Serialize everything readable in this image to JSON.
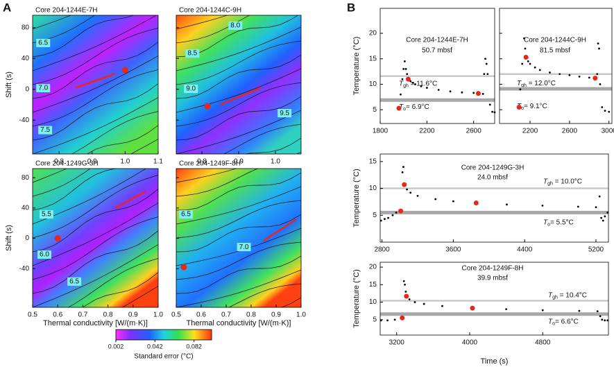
{
  "panel_labels": [
    "A",
    "B"
  ],
  "chart_data": [
    {
      "type": "heatmap",
      "title": "Core 204-1244E-7H",
      "ylabel": "Shift (s)",
      "xlim": [
        0.72,
        1.1
      ],
      "ylim": [
        -84,
        96
      ],
      "xticks": [
        0.8,
        0.9,
        {
          "value": 1,
          "label": "1.0"
        },
        1.1
      ],
      "yticks": [
        80,
        40,
        0,
        -40
      ],
      "contours": [
        {
          "level": 6.5,
          "x": 0.752,
          "y": 60
        },
        {
          "level": {
            "value": 7,
            "label": "7.0"
          },
          "x": 0.752,
          "y": 1.5
        },
        {
          "level": 7.5,
          "x": 0.758,
          "y": -53
        }
      ],
      "best_fit": {
        "x": 1.0,
        "y": 25
      },
      "fit_line": {
        "x": [
          0.85,
          0.97
        ],
        "y": [
          2,
          20
        ]
      },
      "color": "#e8261c"
    },
    {
      "type": "heatmap",
      "title": "Core 204-1244C-9H",
      "xlim": [
        0.73,
        1.07
      ],
      "ylim": [
        -84,
        96
      ],
      "xticks": [
        0.8,
        0.9,
        {
          "value": 1,
          "label": "1.0"
        }
      ],
      "yticks": [
        80,
        40,
        0,
        -40
      ],
      "ytick_labels": false,
      "contours": [
        {
          "level": {
            "value": 8,
            "label": "8.0"
          },
          "x": 0.891,
          "y": 82.5
        },
        {
          "level": 8.5,
          "x": 0.774,
          "y": 46.5
        },
        {
          "level": {
            "value": 9,
            "label": "9.0"
          },
          "x": 0.77,
          "y": 0.6
        },
        {
          "level": 9.5,
          "x": 1.025,
          "y": -31
        }
      ],
      "best_fit": {
        "x": 0.815,
        "y": -22
      },
      "fit_line": {
        "x": [
          0.85,
          0.96
        ],
        "y": [
          -20,
          2
        ]
      },
      "color": "#e8261c"
    },
    {
      "type": "heatmap",
      "title": "Core 204-1249G-3H",
      "ylabel": "Shift (s)",
      "xlabel": "Thermal conductivity [W/(m·K)]",
      "xlim": [
        0.5,
        1.0
      ],
      "ylim": [
        -91,
        92
      ],
      "xticks": [
        0.5,
        0.6,
        0.7,
        0.8,
        0.9,
        {
          "value": 1,
          "label": "1.0"
        }
      ],
      "yticks": [
        80,
        40,
        0,
        -40
      ],
      "contours": [
        {
          "level": 5.5,
          "x": 0.555,
          "y": 31.6
        },
        {
          "level": {
            "value": 6,
            "label": "6.0"
          },
          "x": 0.547,
          "y": -21.5
        },
        {
          "level": 6.5,
          "x": 0.666,
          "y": -57
        }
      ],
      "best_fit": {
        "x": 0.6,
        "y": 0
      },
      "fit_line": {
        "x": [
          0.83,
          0.95
        ],
        "y": [
          40,
          62
        ]
      },
      "color": "#e8261c"
    },
    {
      "type": "heatmap",
      "title": "Core 204-1249F-8H",
      "xlabel": "Thermal conductivity [W/(m·K)]",
      "xlim": [
        0.5,
        1.0
      ],
      "ylim": [
        -91,
        92
      ],
      "xticks": [
        0.5,
        0.6,
        0.7,
        0.8,
        0.9,
        {
          "value": 1,
          "label": "1.0"
        }
      ],
      "yticks": [
        80,
        40,
        0,
        -40
      ],
      "ytick_labels": false,
      "contours": [
        {
          "level": 6.5,
          "x": 0.539,
          "y": 31.6
        },
        {
          "level": {
            "value": 7,
            "label": "7.0"
          },
          "x": 0.771,
          "y": -11.5
        }
      ],
      "best_fit": {
        "x": 0.53,
        "y": -38
      },
      "fit_line": {
        "x": [
          0.85,
          0.98
        ],
        "y": [
          -3,
          25
        ]
      },
      "color": "#e8261c"
    },
    {
      "type": "scatter",
      "ylabel": "Temperature (°C)",
      "annotations": [
        "Core 204-1244E-7H",
        "50.7 mbsf"
      ],
      "xlim": [
        1800,
        2780
      ],
      "ylim": [
        2.3,
        24.9
      ],
      "xticks": [
        1800,
        2200,
        2600
      ],
      "yticks": [
        5,
        10,
        15,
        20
      ],
      "x": [
        1960,
        1975,
        1990,
        2000,
        2010,
        2020,
        2030,
        2040,
        2060,
        2080,
        2100,
        2150,
        2200,
        2300,
        2400,
        2500,
        2600,
        2650,
        2680,
        2690,
        2700,
        2710,
        2720,
        2740,
        2760,
        2780
      ],
      "values": [
        5.3,
        8,
        11,
        13,
        14.5,
        13,
        12,
        11,
        10.6,
        10.3,
        10,
        9.6,
        9.3,
        8.9,
        8.6,
        8.4,
        8.3,
        8.2,
        8.1,
        12,
        15,
        14,
        12,
        6,
        4.6,
        4.5
      ],
      "color": "#000000",
      "picks": {
        "x": [
          1960,
          2040,
          2640
        ],
        "values": [
          5.3,
          11,
          8.2
        ],
        "color": "#e8261c"
      },
      "hlines": [
        {
          "symbol": "T",
          "sub": "gh",
          "text": " = 11.6°C",
          "value": 11.6,
          "color": "#c8c8c8"
        },
        {
          "symbol": "T",
          "sub": "o",
          "text": "= 6.9°C",
          "value": 6.9,
          "color": "#a8a8a8"
        }
      ]
    },
    {
      "type": "scatter",
      "annotations": [
        "Core 204-1244C-9H",
        "81.5 mbsf"
      ],
      "xlim": [
        1890,
        3030
      ],
      "ylim": [
        2.3,
        24.9
      ],
      "xticks": [
        2200,
        2600,
        3000
      ],
      "yticks": [
        5,
        10,
        15,
        20
      ],
      "ytick_labels": false,
      "x": [
        2088,
        2100,
        2120,
        2140,
        2150,
        2158,
        2180,
        2200,
        2250,
        2300,
        2400,
        2500,
        2600,
        2700,
        2800,
        2860,
        2880,
        2890,
        2900,
        2910,
        2930,
        2960,
        3000
      ],
      "values": [
        5.5,
        9,
        14,
        19,
        17,
        15.3,
        14.5,
        14,
        13.3,
        12.8,
        12.3,
        12,
        11.8,
        11.5,
        11.3,
        11.2,
        12,
        18,
        17,
        10,
        5.5,
        4.8,
        4.6
      ],
      "color": "#000000",
      "picks": {
        "x": [
          2088,
          2158,
          2860
        ],
        "values": [
          5.5,
          15.3,
          11.2
        ],
        "color": "#e8261c"
      },
      "hlines": [
        {
          "symbol": "T",
          "sub": "gh",
          "text": " = 12.0°C",
          "value": 12.0,
          "color": "#c8c8c8"
        },
        {
          "symbol": "T",
          "sub": "o",
          "text": "= 9.1°C",
          "value": 9.1,
          "color": "#a8a8a8"
        }
      ]
    },
    {
      "type": "scatter",
      "ylabel": "Temperature (°C)",
      "annotations": [
        "Core 204-1249G-3H",
        "24.0 mbsf"
      ],
      "xlim": [
        2780,
        5340
      ],
      "ylim": [
        0,
        16.4
      ],
      "xticks": [
        2800,
        3600,
        4400,
        5200
      ],
      "yticks": [
        5,
        10,
        15
      ],
      "x": [
        2790,
        2830,
        2870,
        2920,
        2960,
        3000,
        3010,
        3030,
        3040,
        3050,
        3080,
        3120,
        3200,
        3400,
        3600,
        3856,
        4200,
        4600,
        5000,
        5200,
        5240,
        5260,
        5280,
        5300,
        5330
      ],
      "values": [
        4,
        4.3,
        4.5,
        5,
        5.5,
        5.7,
        5.8,
        13,
        14,
        10.7,
        9.8,
        9.2,
        8.6,
        8,
        7.6,
        7.3,
        7,
        6.8,
        6.6,
        6.5,
        8.5,
        4.5,
        4,
        4.8,
        5.5
      ],
      "color": "#000000",
      "picks": {
        "x": [
          3010,
          3050,
          3856
        ],
        "values": [
          5.8,
          10.7,
          7.3
        ],
        "color": "#e8261c"
      },
      "hlines": [
        {
          "symbol": "T",
          "sub": "gh",
          "text": " = 10.0°C",
          "value": 10.0,
          "color": "#c8c8c8"
        },
        {
          "symbol": "T",
          "sub": "o",
          "text": "= 5.5°C",
          "value": 5.5,
          "color": "#a8a8a8"
        }
      ]
    },
    {
      "type": "scatter",
      "ylabel": "Temperature (°C)",
      "xlabel": "Time (s)",
      "annotations": [
        "Core 204-1249F-8H",
        "39.9 mbsf"
      ],
      "xlim": [
        3020,
        5520
      ],
      "ylim": [
        0.6,
        21.4
      ],
      "xticks": [
        3200,
        4000,
        4800
      ],
      "yticks": [
        5,
        10,
        15,
        20
      ],
      "x": [
        3030,
        3100,
        3180,
        3261,
        3280,
        3290,
        3300,
        3307,
        3340,
        3400,
        3500,
        3700,
        4030,
        4400,
        4800,
        5200,
        5400,
        5430,
        5450,
        5480,
        5510
      ],
      "values": [
        4.8,
        4.8,
        5,
        5.5,
        16,
        15,
        13,
        11.7,
        10.8,
        10,
        9.5,
        8.9,
        8.3,
        8,
        7.7,
        7.5,
        7.4,
        6,
        5,
        4.8,
        4.8
      ],
      "color": "#000000",
      "picks": {
        "x": [
          3261,
          3307,
          4030
        ],
        "values": [
          5.5,
          11.7,
          8.3
        ],
        "color": "#e8261c"
      },
      "hlines": [
        {
          "symbol": "T",
          "sub": "gh",
          "text": " = 10.4°C",
          "value": 10.4,
          "color": "#c8c8c8"
        },
        {
          "symbol": "T",
          "sub": "o",
          "text": "= 6.6°C",
          "value": 6.6,
          "color": "#a8a8a8"
        }
      ]
    },
    {
      "type": "colorbar",
      "label": "Standard error (°C)",
      "xlim": [
        0.002,
        0.1
      ],
      "xticks": [
        0.002,
        0.042,
        0.082
      ]
    }
  ]
}
